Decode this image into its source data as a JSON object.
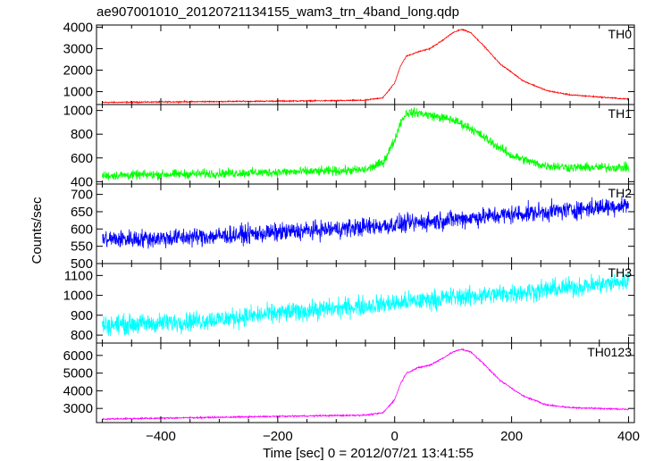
{
  "chart_data": {
    "type": "line",
    "title": "ae907001010_20120721134155_wam3_trn_4band_long.qdp",
    "xlabel": "Time [sec] 0 = 2012/07/21 13:41:55",
    "ylabel": "Counts/sec",
    "xlim": [
      -510,
      410
    ],
    "x_ticks": [
      -400,
      -200,
      0,
      200,
      400
    ],
    "x_tick_labels": [
      "−400",
      "−200",
      "0",
      "200",
      "400"
    ],
    "grid": false,
    "series": [
      {
        "name": "TH0",
        "color": "#ff0000",
        "ylim": [
          400,
          4100
        ],
        "y_ticks": [
          1000,
          2000,
          3000,
          4000
        ],
        "noise": 40,
        "x": [
          -500,
          -400,
          -300,
          -200,
          -100,
          -50,
          -20,
          0,
          10,
          20,
          40,
          60,
          80,
          100,
          115,
          130,
          150,
          180,
          220,
          260,
          300,
          350,
          400
        ],
        "y": [
          500,
          520,
          540,
          560,
          580,
          600,
          720,
          1400,
          2200,
          2650,
          2850,
          3000,
          3350,
          3750,
          3900,
          3750,
          3200,
          2300,
          1500,
          1050,
          850,
          750,
          650
        ]
      },
      {
        "name": "TH1",
        "color": "#00ff00",
        "ylim": [
          380,
          1050
        ],
        "y_ticks": [
          400,
          600,
          800,
          1000
        ],
        "noise": 55,
        "x": [
          -500,
          -400,
          -300,
          -200,
          -100,
          -50,
          -20,
          0,
          10,
          20,
          40,
          70,
          100,
          130,
          160,
          200,
          250,
          300,
          350,
          400
        ],
        "y": [
          450,
          460,
          470,
          480,
          490,
          500,
          560,
          750,
          900,
          980,
          980,
          950,
          920,
          850,
          750,
          620,
          540,
          520,
          520,
          520
        ]
      },
      {
        "name": "TH2",
        "color": "#0000ff",
        "ylim": [
          500,
          730
        ],
        "y_ticks": [
          500,
          550,
          600,
          650,
          700
        ],
        "noise": 38,
        "x": [
          -500,
          -400,
          -300,
          -200,
          -100,
          0,
          100,
          200,
          300,
          400
        ],
        "y": [
          570,
          573,
          580,
          590,
          600,
          612,
          628,
          642,
          655,
          670
        ]
      },
      {
        "name": "TH3",
        "color": "#00ffff",
        "ylim": [
          760,
          1160
        ],
        "y_ticks": [
          800,
          900,
          1000,
          1100
        ],
        "noise": 70,
        "x": [
          -500,
          -400,
          -300,
          -200,
          -100,
          0,
          100,
          200,
          300,
          400
        ],
        "y": [
          850,
          860,
          880,
          910,
          935,
          960,
          990,
          1010,
          1040,
          1070
        ]
      },
      {
        "name": "TH0123",
        "color": "#ff00ff",
        "ylim": [
          2200,
          6700
        ],
        "y_ticks": [
          3000,
          4000,
          5000,
          6000
        ],
        "noise": 60,
        "x": [
          -500,
          -400,
          -300,
          -200,
          -100,
          -50,
          -20,
          0,
          10,
          20,
          40,
          60,
          80,
          100,
          115,
          130,
          150,
          180,
          220,
          260,
          300,
          350,
          400
        ],
        "y": [
          2400,
          2450,
          2500,
          2550,
          2600,
          2620,
          2750,
          3500,
          4400,
          5000,
          5300,
          5450,
          5800,
          6200,
          6350,
          6200,
          5600,
          4600,
          3700,
          3200,
          3050,
          3000,
          2950
        ]
      }
    ]
  }
}
